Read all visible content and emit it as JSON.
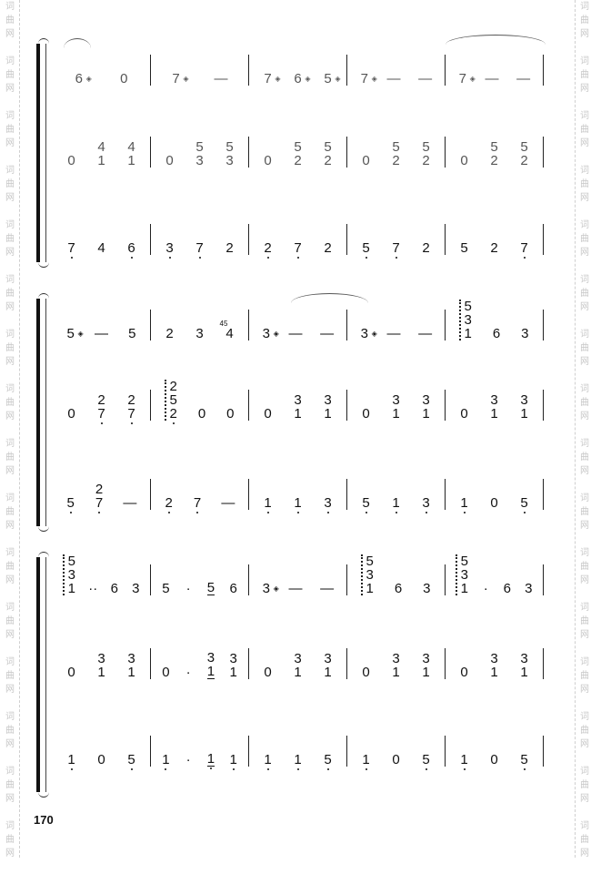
{
  "watermark": {
    "chars": [
      "词",
      "曲",
      "网"
    ]
  },
  "page_number": "170",
  "ornament_symbol": "◈",
  "systems": [
    {
      "staves": [
        [
          [
            {
              "t": "6",
              "orn": 1
            },
            {
              "t": "0"
            }
          ],
          [
            {
              "t": "7",
              "orn": 1
            },
            {
              "t": "—"
            }
          ],
          [
            {
              "t": "7",
              "orn": 1
            },
            {
              "t": "6",
              "orn": 1
            },
            {
              "t": "5",
              "orn": 1
            }
          ],
          [
            {
              "t": "7",
              "orn": 1
            },
            {
              "t": "—"
            },
            {
              "t": "—"
            }
          ],
          [
            {
              "t": "7",
              "orn": 1
            },
            {
              "t": "—"
            },
            {
              "t": "—"
            }
          ]
        ],
        [
          [
            {
              "t": "0"
            },
            {
              "c": [
                "4",
                "1"
              ]
            },
            {
              "c": [
                "4",
                "1"
              ]
            }
          ],
          [
            {
              "t": "0"
            },
            {
              "c": [
                "5",
                "3"
              ]
            },
            {
              "c": [
                "5",
                "3"
              ]
            }
          ],
          [
            {
              "t": "0"
            },
            {
              "c": [
                "5",
                "2"
              ]
            },
            {
              "c": [
                "5",
                "2"
              ]
            }
          ],
          [
            {
              "t": "0"
            },
            {
              "c": [
                "5",
                "2"
              ]
            },
            {
              "c": [
                "5",
                "2"
              ]
            }
          ],
          [
            {
              "t": "0"
            },
            {
              "c": [
                "5",
                "2"
              ]
            },
            {
              "c": [
                "5",
                "2"
              ]
            }
          ]
        ],
        [
          [
            {
              "t": "7",
              "low": 1
            },
            {
              "t": "4"
            },
            {
              "t": "6",
              "low": 1
            }
          ],
          [
            {
              "t": "3",
              "low": 1
            },
            {
              "t": "7",
              "low": 1
            },
            {
              "t": "2"
            }
          ],
          [
            {
              "t": "2",
              "low": 1
            },
            {
              "t": "7",
              "low": 1
            },
            {
              "t": "2"
            }
          ],
          [
            {
              "t": "5",
              "low": 1
            },
            {
              "t": "7",
              "low": 1
            },
            {
              "t": "2"
            }
          ],
          [
            {
              "t": "5"
            },
            {
              "t": "2"
            },
            {
              "t": "7",
              "low": 1
            }
          ]
        ]
      ]
    },
    {
      "staves": [
        [
          [
            {
              "t": "5",
              "orn": 1
            },
            {
              "t": "—"
            },
            {
              "t": "5"
            }
          ],
          [
            {
              "t": "2"
            },
            {
              "t": "3"
            },
            {
              "t": "4",
              "grace": "45"
            }
          ],
          [
            {
              "t": "3",
              "orn": 1
            },
            {
              "t": "—"
            },
            {
              "t": "—"
            }
          ],
          [
            {
              "t": "3",
              "orn": 1
            },
            {
              "t": "—"
            },
            {
              "t": "—"
            }
          ],
          [
            {
              "c": [
                "5",
                "3",
                "1"
              ],
              "arp": 1
            },
            {
              "t": "6"
            },
            {
              "t": "3"
            }
          ]
        ],
        [
          [
            {
              "t": "0"
            },
            {
              "c": [
                "2",
                "7"
              ],
              "lowi": 1
            },
            {
              "c": [
                "2",
                "7"
              ],
              "lowi": 1
            }
          ],
          [
            {
              "c": [
                "2",
                "5",
                "2"
              ],
              "arp": 1,
              "lowi": 2
            },
            {
              "t": "0"
            },
            {
              "t": "0"
            }
          ],
          [
            {
              "t": "0"
            },
            {
              "c": [
                "3",
                "1"
              ]
            },
            {
              "c": [
                "3",
                "1"
              ]
            }
          ],
          [
            {
              "t": "0"
            },
            {
              "c": [
                "3",
                "1"
              ]
            },
            {
              "c": [
                "3",
                "1"
              ]
            }
          ],
          [
            {
              "t": "0"
            },
            {
              "c": [
                "3",
                "1"
              ]
            },
            {
              "c": [
                "3",
                "1"
              ]
            }
          ]
        ],
        [
          [
            {
              "t": "5",
              "low": 1
            },
            {
              "c": [
                "2",
                "7"
              ],
              "lowi": 1
            },
            {
              "t": "—"
            }
          ],
          [
            {
              "t": "2",
              "low": 1
            },
            {
              "t": "7",
              "low": 1
            },
            {
              "t": "—"
            }
          ],
          [
            {
              "t": "1",
              "low": 1
            },
            {
              "t": "1",
              "low": 1
            },
            {
              "t": "3",
              "low": 1
            }
          ],
          [
            {
              "t": "5",
              "low": 1
            },
            {
              "t": "1",
              "low": 1
            },
            {
              "t": "3",
              "low": 1
            }
          ],
          [
            {
              "t": "1",
              "low": 1
            },
            {
              "t": "0"
            },
            {
              "t": "5",
              "low": 1
            }
          ]
        ]
      ]
    },
    {
      "staves": [
        [
          [
            {
              "c": [
                "5",
                "3",
                "1"
              ],
              "arp": 1
            },
            {
              "t": "··"
            },
            {
              "t": "6"
            },
            {
              "t": "3"
            }
          ],
          [
            {
              "t": "5"
            },
            {
              "t": "·"
            },
            {
              "t": "5",
              "ul": 1
            },
            {
              "t": "6"
            }
          ],
          [
            {
              "t": "3",
              "orn": 1
            },
            {
              "t": "—"
            },
            {
              "t": "—"
            }
          ],
          [
            {
              "c": [
                "5",
                "3",
                "1"
              ],
              "arp": 1
            },
            {
              "t": "6"
            },
            {
              "t": "3"
            }
          ],
          [
            {
              "c": [
                "5",
                "3",
                "1"
              ],
              "arp": 1
            },
            {
              "t": "·"
            },
            {
              "t": "6"
            },
            {
              "t": "3"
            }
          ]
        ],
        [
          [
            {
              "t": "0"
            },
            {
              "c": [
                "3",
                "1"
              ]
            },
            {
              "c": [
                "3",
                "1"
              ]
            }
          ],
          [
            {
              "t": "0"
            },
            {
              "t": "·"
            },
            {
              "c": [
                "3",
                "1"
              ],
              "uli": 1
            },
            {
              "c": [
                "3",
                "1"
              ]
            }
          ],
          [
            {
              "t": "0"
            },
            {
              "c": [
                "3",
                "1"
              ]
            },
            {
              "c": [
                "3",
                "1"
              ]
            }
          ],
          [
            {
              "t": "0"
            },
            {
              "c": [
                "3",
                "1"
              ]
            },
            {
              "c": [
                "3",
                "1"
              ]
            }
          ],
          [
            {
              "t": "0"
            },
            {
              "c": [
                "3",
                "1"
              ]
            },
            {
              "c": [
                "3",
                "1"
              ]
            }
          ]
        ],
        [
          [
            {
              "t": "1",
              "low": 1
            },
            {
              "t": "0"
            },
            {
              "t": "5",
              "low": 1
            }
          ],
          [
            {
              "t": "1",
              "low": 1
            },
            {
              "t": "·"
            },
            {
              "t": "1",
              "low": 1,
              "ul": 1
            },
            {
              "t": "1",
              "low": 1
            }
          ],
          [
            {
              "t": "1",
              "low": 1
            },
            {
              "t": "1",
              "low": 1
            },
            {
              "t": "5",
              "low": 1
            }
          ],
          [
            {
              "t": "1",
              "low": 1
            },
            {
              "t": "0"
            },
            {
              "t": "5",
              "low": 1
            }
          ],
          [
            {
              "t": "1",
              "low": 1
            },
            {
              "t": "0"
            },
            {
              "t": "5",
              "low": 1
            }
          ]
        ]
      ]
    }
  ]
}
